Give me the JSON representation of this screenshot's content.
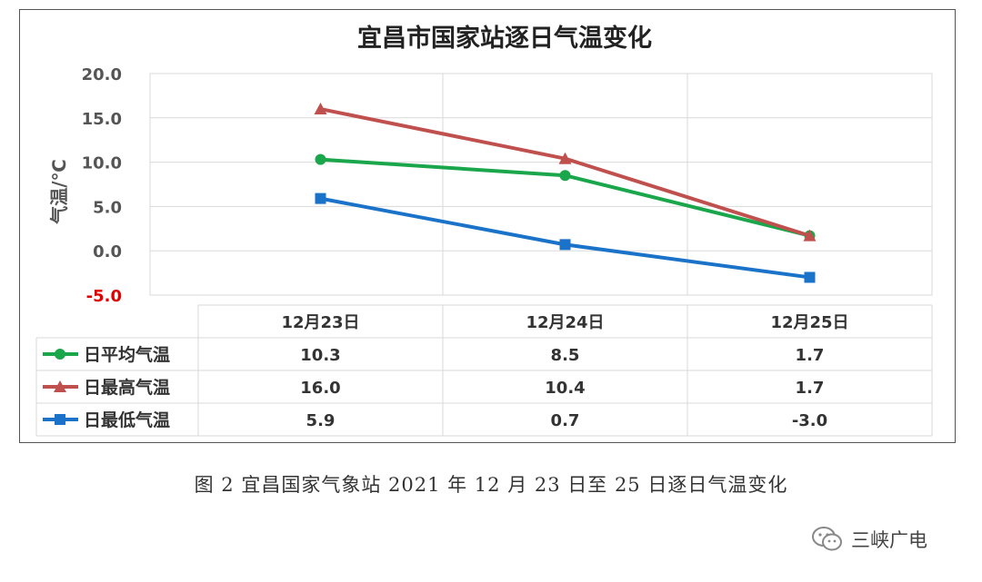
{
  "chart_data": {
    "type": "line",
    "title": "宜昌市国家站逐日气温变化",
    "ylabel": "气温/℃",
    "xlabel": "",
    "ylim": [
      -5.0,
      20.0
    ],
    "yticks": [
      "20.0",
      "15.0",
      "10.0",
      "5.0",
      "0.0",
      "-5.0"
    ],
    "ytick_values": [
      20,
      15,
      10,
      5,
      0,
      -5
    ],
    "categories": [
      "12月23日",
      "12月24日",
      "12月25日"
    ],
    "grid": true,
    "legend_placement": "data-table-left",
    "series": [
      {
        "name": "日平均气温",
        "values": [
          10.3,
          8.5,
          1.7
        ],
        "labels": [
          "10.3",
          "8.5",
          "1.7"
        ],
        "color": "#1aa64a",
        "marker": "circle"
      },
      {
        "name": "日最高气温",
        "values": [
          16.0,
          10.4,
          1.7
        ],
        "labels": [
          "16.0",
          "10.4",
          "1.7"
        ],
        "color": "#c0504d",
        "marker": "triangle"
      },
      {
        "name": "日最低气温",
        "values": [
          5.9,
          0.7,
          -3.0
        ],
        "labels": [
          "5.9",
          "0.7",
          "-3.0"
        ],
        "color": "#1a73c8",
        "marker": "square"
      }
    ],
    "colors": {
      "negative_tick": "#e00000",
      "grid": "#d9d9d9",
      "axis_text": "#555555"
    }
  },
  "caption": "图 2   宜昌国家气象站 2021 年 12 月 23 日至 25 日逐日气温变化",
  "watermark": {
    "text": "三峡广电",
    "icon": "wechat-icon"
  }
}
